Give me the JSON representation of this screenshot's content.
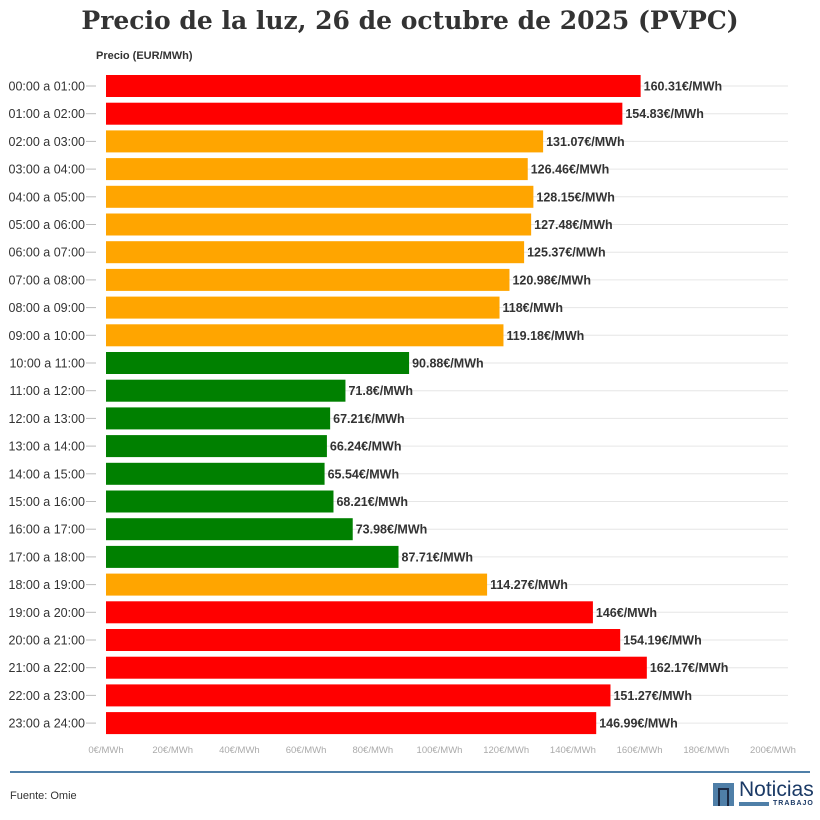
{
  "chart_data": {
    "type": "bar",
    "orientation": "horizontal",
    "title": "Precio de la luz, 26 de octubre de 2025 (PVPC)",
    "ylabel": "Precio (EUR/MWh)",
    "xlabel": "",
    "xlim": [
      0,
      200
    ],
    "xticks": [
      "0€/MWh",
      "20€/MWh",
      "40€/MWh",
      "60€/MWh",
      "80€/MWh",
      "100€/MWh",
      "120€/MWh",
      "140€/MWh",
      "160€/MWh",
      "180€/MWh",
      "200€/MWh"
    ],
    "grid": true,
    "categories": [
      "00:00 a 01:00",
      "01:00 a 02:00",
      "02:00 a 03:00",
      "03:00 a 04:00",
      "04:00 a 05:00",
      "05:00 a 06:00",
      "06:00 a 07:00",
      "07:00 a 08:00",
      "08:00 a 09:00",
      "09:00 a 10:00",
      "10:00 a 11:00",
      "11:00 a 12:00",
      "12:00 a 13:00",
      "13:00 a 14:00",
      "14:00 a 15:00",
      "15:00 a 16:00",
      "16:00 a 17:00",
      "17:00 a 18:00",
      "18:00 a 19:00",
      "19:00 a 20:00",
      "20:00 a 21:00",
      "21:00 a 22:00",
      "22:00 a 23:00",
      "23:00 a 24:00"
    ],
    "values": [
      160.31,
      154.83,
      131.07,
      126.46,
      128.15,
      127.48,
      125.37,
      120.98,
      118,
      119.18,
      90.88,
      71.8,
      67.21,
      66.24,
      65.54,
      68.21,
      73.98,
      87.71,
      114.27,
      146,
      154.19,
      162.17,
      151.27,
      146.99
    ],
    "data_labels": [
      "160.31€/MWh",
      "154.83€/MWh",
      "131.07€/MWh",
      "126.46€/MWh",
      "128.15€/MWh",
      "127.48€/MWh",
      "125.37€/MWh",
      "120.98€/MWh",
      "118€/MWh",
      "119.18€/MWh",
      "90.88€/MWh",
      "71.8€/MWh",
      "67.21€/MWh",
      "66.24€/MWh",
      "65.54€/MWh",
      "68.21€/MWh",
      "73.98€/MWh",
      "87.71€/MWh",
      "114.27€/MWh",
      "146€/MWh",
      "154.19€/MWh",
      "162.17€/MWh",
      "151.27€/MWh",
      "146.99€/MWh"
    ],
    "bar_colors": [
      "red",
      "red",
      "orange",
      "orange",
      "orange",
      "orange",
      "orange",
      "orange",
      "orange",
      "orange",
      "green",
      "green",
      "green",
      "green",
      "green",
      "green",
      "green",
      "green",
      "orange",
      "red",
      "red",
      "red",
      "red",
      "red"
    ],
    "colors": {
      "red": "#ff0000",
      "orange": "#ffa500",
      "green": "#008000"
    }
  },
  "footer": {
    "source": "Fuente: Omie",
    "logo_text": "Noticias",
    "logo_sub": "TRABAJO"
  }
}
